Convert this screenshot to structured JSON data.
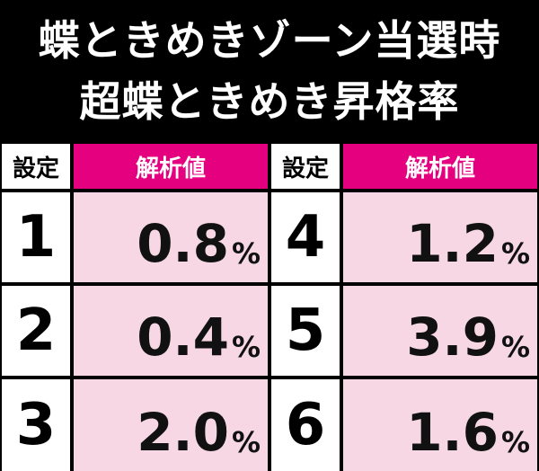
{
  "header": {
    "title_lines": [
      "蝶ときめきゾーン当選時",
      "超蝶ときめき昇格率"
    ]
  },
  "table": {
    "columns": [
      "設定",
      "解析値"
    ],
    "left": [
      {
        "setting": "1",
        "value": "0.8",
        "unit": "%"
      },
      {
        "setting": "2",
        "value": "0.4",
        "unit": "%"
      },
      {
        "setting": "3",
        "value": "2.0",
        "unit": "%"
      }
    ],
    "right": [
      {
        "setting": "4",
        "value": "1.2",
        "unit": "%"
      },
      {
        "setting": "5",
        "value": "3.9",
        "unit": "%"
      },
      {
        "setting": "6",
        "value": "1.6",
        "unit": "%"
      }
    ]
  }
}
